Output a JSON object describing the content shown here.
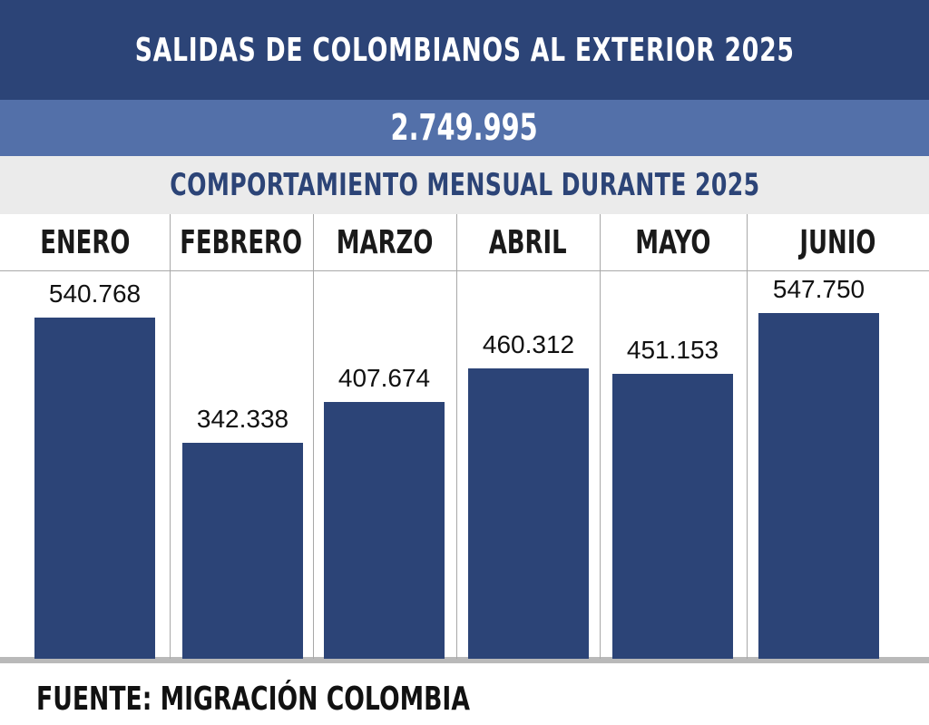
{
  "header": {
    "title": "SALIDAS DE COLOMBIANOS AL EXTERIOR 2025",
    "total": "2.749.995",
    "subtitle": "COMPORTAMIENTO MENSUAL DURANTE 2025"
  },
  "chart_data": {
    "type": "bar",
    "title": "SALIDAS DE COLOMBIANOS AL EXTERIOR 2025",
    "subtitle": "COMPORTAMIENTO MENSUAL DURANTE 2025",
    "categories": [
      "ENERO",
      "FEBRERO",
      "MARZO",
      "ABRIL",
      "MAYO",
      "JUNIO"
    ],
    "values": [
      540768,
      342338,
      407674,
      460312,
      451153,
      547750
    ],
    "value_labels": [
      "540.768",
      "342.338",
      "407.674",
      "460.312",
      "451.153",
      "547.750"
    ],
    "xlabel": "",
    "ylabel": "",
    "ylim": [
      0,
      600000
    ],
    "grid": false,
    "legend": "none",
    "bar_color": "#2c4477"
  },
  "footer": {
    "source": "FUENTE: MIGRACIÓN COLOMBIA"
  },
  "colors": {
    "primary": "#2c4477",
    "secondary": "#5370a9",
    "subtitle_bg": "#ebebeb"
  }
}
